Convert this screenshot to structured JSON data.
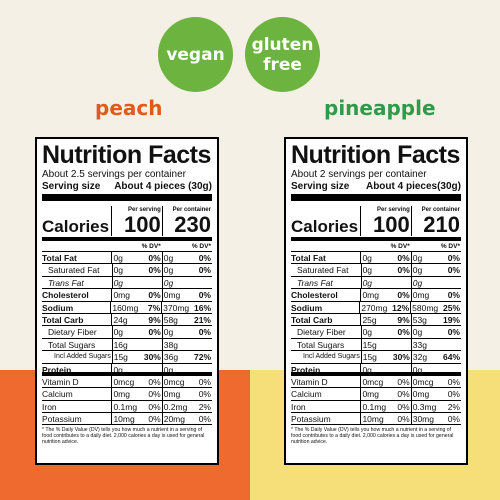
{
  "colors": {
    "background": "#f5f0e6",
    "badge_green": "#6cb33f",
    "peach_text": "#e05a1c",
    "pineapple_text": "#2f9a4a",
    "peach_block": "#ee6a2f",
    "pineapple_block": "#f6de78"
  },
  "badges": {
    "vegan": "vegan",
    "gluten_line1": "gluten",
    "gluten_line2": "free"
  },
  "flavors": {
    "left": "peach",
    "right": "pineapple"
  },
  "labels": {
    "title": "Nutrition Facts",
    "per_serving": "Per serving",
    "per_container": "Per container",
    "calories": "Calories",
    "dv": "% DV*",
    "serving_size": "Serving size",
    "footnote": "* The % Daily Value (DV) tells you how much a nutrient in a serving of food contributes to a daily diet. 2,000 calories a day is used for general nutrition advice."
  },
  "left": {
    "servings": "About 2.5 servings per container",
    "serving_size": "About 4 pieces (30g)",
    "cal_serving": "100",
    "cal_container": "230",
    "rows": [
      [
        "Total Fat",
        "0g",
        "0%",
        "0g",
        "0%"
      ],
      [
        "Saturated Fat",
        "0g",
        "0%",
        "0g",
        "0%"
      ],
      [
        "Trans Fat",
        "0g",
        "",
        "0g",
        ""
      ],
      [
        "Cholesterol",
        "0mg",
        "0%",
        "0mg",
        "0%"
      ],
      [
        "Sodium",
        "160mg",
        "7%",
        "370mg",
        "16%"
      ],
      [
        "Total Carb",
        "24g",
        "9%",
        "58g",
        "21%"
      ],
      [
        "Dietary Fiber",
        "0g",
        "0%",
        "0g",
        "0%"
      ],
      [
        "Total Sugars",
        "16g",
        "",
        "38g",
        ""
      ],
      [
        "Incl Added Sugars",
        "15g",
        "30%",
        "36g",
        "72%"
      ],
      [
        "Protein",
        "0g",
        "",
        "0g",
        ""
      ],
      [
        "Vitamin D",
        "0mcg",
        "0%",
        "0mcg",
        "0%"
      ],
      [
        "Calcium",
        "0mg",
        "0%",
        "0mg",
        "0%"
      ],
      [
        "Iron",
        "0.1mg",
        "0%",
        "0.2mg",
        "2%"
      ],
      [
        "Potassium",
        "10mg",
        "0%",
        "20mg",
        "0%"
      ]
    ]
  },
  "right": {
    "servings": "About 2 servings per container",
    "serving_size": "About 4 pieces(30g)",
    "cal_serving": "100",
    "cal_container": "210",
    "rows": [
      [
        "Total Fat",
        "0g",
        "0%",
        "0g",
        "0%"
      ],
      [
        "Saturated Fat",
        "0g",
        "0%",
        "0g",
        "0%"
      ],
      [
        "Trans Fat",
        "0g",
        "",
        "0g",
        ""
      ],
      [
        "Cholesterol",
        "0mg",
        "0%",
        "0mg",
        "0%"
      ],
      [
        "Sodium",
        "270mg",
        "12%",
        "580mg",
        "25%"
      ],
      [
        "Total Carb",
        "25g",
        "9%",
        "53g",
        "19%"
      ],
      [
        "Dietary Fiber",
        "0g",
        "0%",
        "0g",
        "0%"
      ],
      [
        "Total Sugars",
        "15g",
        "",
        "33g",
        ""
      ],
      [
        "Incl Added Sugars",
        "15g",
        "30%",
        "32g",
        "64%"
      ],
      [
        "Protein",
        "0g",
        "",
        "0g",
        ""
      ],
      [
        "Vitamin D",
        "0mcg",
        "0%",
        "0mcg",
        "0%"
      ],
      [
        "Calcium",
        "0mg",
        "0%",
        "0mg",
        "0%"
      ],
      [
        "Iron",
        "0.1mg",
        "0%",
        "0.3mg",
        "2%"
      ],
      [
        "Potassium",
        "10mg",
        "0%",
        "30mg",
        "0%"
      ]
    ]
  }
}
